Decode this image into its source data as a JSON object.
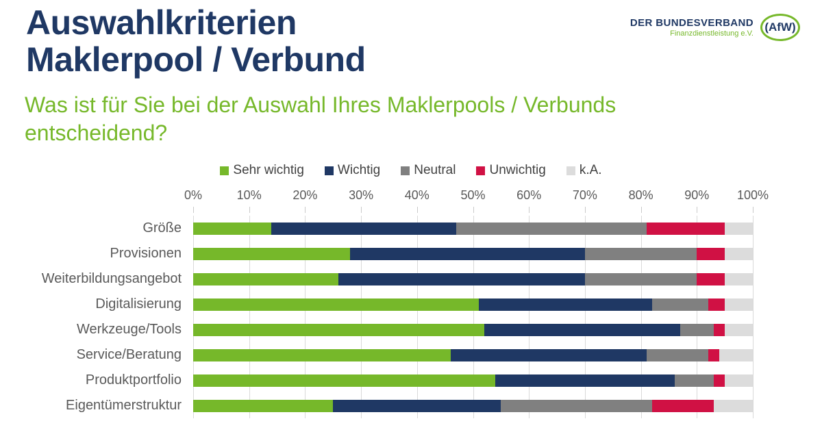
{
  "header": {
    "title_line1": "Auswahlkriterien",
    "title_line2": "Maklerpool / Verbund",
    "logo": {
      "name": "DER BUNDESVERBAND",
      "subname": "Finanzdienstleistung e.V.",
      "badge": "(AfW)"
    }
  },
  "subtitle": "Was ist für Sie bei der Auswahl Ihres Maklerpools / Verbunds entscheidend?",
  "colors": {
    "title_navy": "#1f3864",
    "accent_green": "#76b82a",
    "gridline": "#d9d9d9",
    "axis_text": "#595959"
  },
  "chart_data": {
    "type": "bar",
    "orientation": "horizontal",
    "stacked": true,
    "unit": "%",
    "grid": true,
    "legend_position": "top",
    "xlim": [
      0,
      100
    ],
    "x_ticks": [
      "0%",
      "10%",
      "20%",
      "30%",
      "40%",
      "50%",
      "60%",
      "70%",
      "80%",
      "90%",
      "100%"
    ],
    "categories": [
      "Größe",
      "Provisionen",
      "Weiterbildungsangebot",
      "Digitalisierung",
      "Werkzeuge/Tools",
      "Service/Beratung",
      "Produktportfolio",
      "Eigentümerstruktur"
    ],
    "series": [
      {
        "name": "Sehr wichtig",
        "color": "#76b82a",
        "values": [
          14,
          28,
          26,
          51,
          52,
          46,
          54,
          25
        ]
      },
      {
        "name": "Wichtig",
        "color": "#1f3864",
        "values": [
          33,
          42,
          44,
          31,
          35,
          35,
          32,
          30
        ]
      },
      {
        "name": "Neutral",
        "color": "#808080",
        "values": [
          34,
          20,
          20,
          10,
          6,
          11,
          7,
          27
        ]
      },
      {
        "name": "Unwichtig",
        "color": "#d01144",
        "values": [
          14,
          5,
          5,
          3,
          2,
          2,
          2,
          11
        ]
      },
      {
        "name": "k.A.",
        "color": "#dcdcdc",
        "values": [
          5,
          5,
          5,
          5,
          5,
          6,
          5,
          7
        ]
      }
    ]
  }
}
